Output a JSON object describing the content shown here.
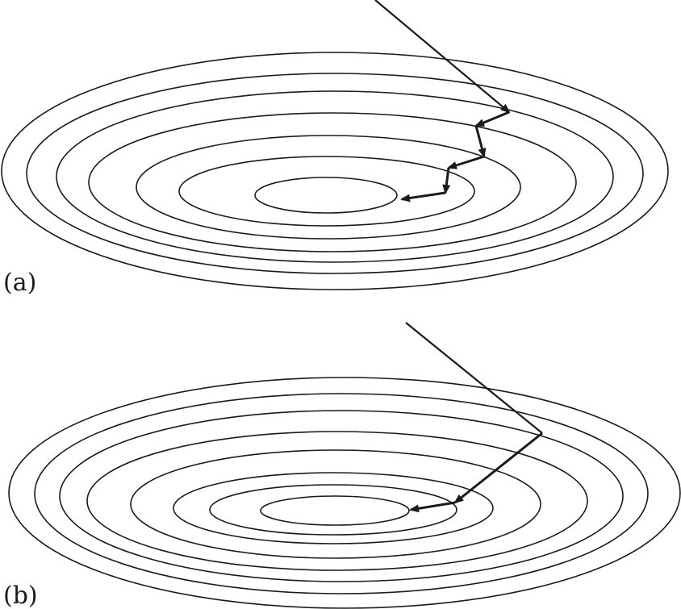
{
  "panels": [
    {
      "id": "a",
      "label": "(a)",
      "contour_count": 7,
      "descent_steps": 6
    },
    {
      "id": "b",
      "label": "(b)",
      "contour_count": 8,
      "descent_steps": 2
    }
  ],
  "colors": {
    "stroke": "#1a1a1a",
    "background": "#ffffff"
  }
}
